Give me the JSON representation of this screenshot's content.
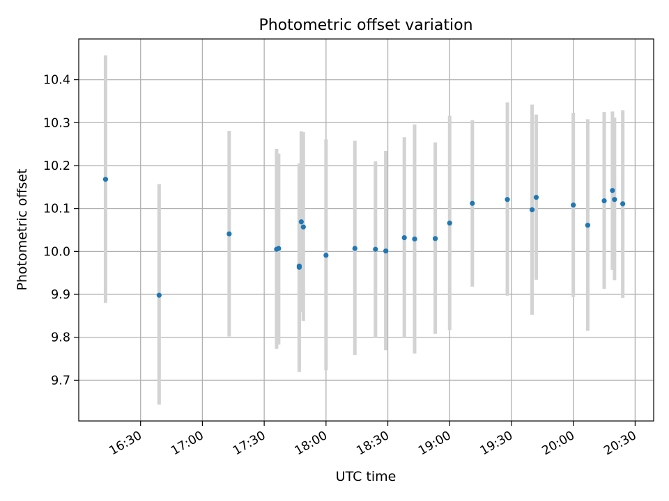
{
  "chart_data": {
    "type": "scatter",
    "title": "Photometric offset variation",
    "xlabel": "UTC time",
    "ylabel": "Photometric offset",
    "x_type": "time",
    "xlim": [
      "16:00",
      "20:39"
    ],
    "ylim": [
      9.605,
      10.495
    ],
    "x_ticks": [
      "16:30",
      "17:00",
      "17:30",
      "18:00",
      "18:30",
      "19:00",
      "19:30",
      "20:00",
      "20:30"
    ],
    "y_ticks": [
      9.7,
      9.8,
      9.9,
      10.0,
      10.1,
      10.2,
      10.3,
      10.4
    ],
    "y_tick_labels": [
      "9.7",
      "9.8",
      "9.9",
      "10.0",
      "10.1",
      "10.2",
      "10.3",
      "10.4"
    ],
    "grid": true,
    "legend": "none",
    "colors": {
      "points": "#1f77b4",
      "error_bars": "#d3d3d3",
      "grid": "#b0b0b0"
    },
    "series": [
      {
        "points": [
          {
            "x": "16:13",
            "y": 10.168,
            "ylo": 9.88,
            "yhi": 10.457
          },
          {
            "x": "16:39",
            "y": 9.898,
            "ylo": 9.643,
            "yhi": 10.157
          },
          {
            "x": "17:13",
            "y": 10.041,
            "ylo": 9.802,
            "yhi": 10.281
          },
          {
            "x": "17:36",
            "y": 10.005,
            "ylo": 9.773,
            "yhi": 10.239
          },
          {
            "x": "17:37",
            "y": 10.007,
            "ylo": 9.783,
            "yhi": 10.228
          },
          {
            "x": "17:47",
            "y": 9.963,
            "ylo": 9.719,
            "yhi": 10.205
          },
          {
            "x": "17:47",
            "y": 9.966,
            "ylo": 9.73,
            "yhi": 10.202
          },
          {
            "x": "17:48",
            "y": 10.069,
            "ylo": 9.858,
            "yhi": 10.28
          },
          {
            "x": "17:49",
            "y": 10.057,
            "ylo": 9.838,
            "yhi": 10.278
          },
          {
            "x": "18:00",
            "y": 9.991,
            "ylo": 9.723,
            "yhi": 10.261
          },
          {
            "x": "18:14",
            "y": 10.007,
            "ylo": 9.759,
            "yhi": 10.258
          },
          {
            "x": "18:24",
            "y": 10.005,
            "ylo": 9.8,
            "yhi": 10.21
          },
          {
            "x": "18:29",
            "y": 10.001,
            "ylo": 9.77,
            "yhi": 10.234
          },
          {
            "x": "18:38",
            "y": 10.032,
            "ylo": 9.8,
            "yhi": 10.266
          },
          {
            "x": "18:43",
            "y": 10.029,
            "ylo": 9.762,
            "yhi": 10.296
          },
          {
            "x": "18:53",
            "y": 10.03,
            "ylo": 9.808,
            "yhi": 10.254
          },
          {
            "x": "19:00",
            "y": 10.066,
            "ylo": 9.817,
            "yhi": 10.316
          },
          {
            "x": "19:11",
            "y": 10.112,
            "ylo": 9.918,
            "yhi": 10.306
          },
          {
            "x": "19:28",
            "y": 10.121,
            "ylo": 9.897,
            "yhi": 10.347
          },
          {
            "x": "19:40",
            "y": 10.097,
            "ylo": 9.852,
            "yhi": 10.342
          },
          {
            "x": "19:42",
            "y": 10.126,
            "ylo": 9.934,
            "yhi": 10.319
          },
          {
            "x": "20:00",
            "y": 10.108,
            "ylo": 9.894,
            "yhi": 10.323
          },
          {
            "x": "20:07",
            "y": 10.061,
            "ylo": 9.815,
            "yhi": 10.308
          },
          {
            "x": "20:15",
            "y": 10.118,
            "ylo": 9.913,
            "yhi": 10.325
          },
          {
            "x": "20:19",
            "y": 10.142,
            "ylo": 9.957,
            "yhi": 10.326
          },
          {
            "x": "20:20",
            "y": 10.121,
            "ylo": 9.933,
            "yhi": 10.312
          },
          {
            "x": "20:24",
            "y": 10.111,
            "ylo": 9.892,
            "yhi": 10.329
          }
        ]
      }
    ]
  }
}
